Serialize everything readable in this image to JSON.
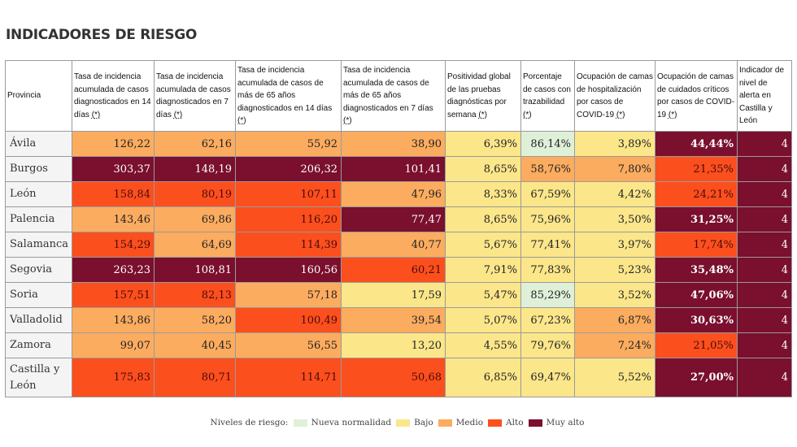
{
  "page": {
    "title": "INDICADORES DE RIESGO"
  },
  "colors": {
    "nueva": "#dff0d8",
    "bajo": "#fbe68a",
    "medio": "#fcac5f",
    "alto": "#fc4f1e",
    "muy_alto": "#7a0f2e"
  },
  "table": {
    "headers": [
      {
        "text": "Provincia",
        "ast": ""
      },
      {
        "text": "Tasa de incidencia acumulada de casos diagnosticados en 14 días ",
        "ast": "(*)"
      },
      {
        "text": "Tasa de incidencia acumulada de casos diagnosticados en 7 días ",
        "ast": "(*)"
      },
      {
        "text": "Tasa de incidencia acumulada de casos de más de 65 años diagnosticados en 14 días ",
        "ast": "(*)"
      },
      {
        "text": "Tasa de incidencia acumulada de casos de más de 65 años diagnosticados en 7 días ",
        "ast": "(*)"
      },
      {
        "text": "Positividad global de las pruebas diagnósticas por semana ",
        "ast": "(*)"
      },
      {
        "text": "Porcentaje de casos con trazabilidad ",
        "ast": "(*)"
      },
      {
        "text": "Ocupación de camas de hospitalización por casos de COVID-19 ",
        "ast": "(*)"
      },
      {
        "text": "Ocupación de camas de cuidados críticos por casos de COVID-19 ",
        "ast": "(*)"
      },
      {
        "text": "Indicador de nivel de alerta en Castilla y León",
        "ast": ""
      }
    ],
    "rows": [
      {
        "province": "Ávila",
        "cells": [
          {
            "v": "126,22",
            "l": "medio"
          },
          {
            "v": "62,16",
            "l": "medio"
          },
          {
            "v": "55,92",
            "l": "medio"
          },
          {
            "v": "38,90",
            "l": "medio"
          },
          {
            "v": "6,39%",
            "l": "bajo"
          },
          {
            "v": "86,14%",
            "l": "nueva"
          },
          {
            "v": "3,89%",
            "l": "bajo"
          },
          {
            "v": "44,44%",
            "l": "muy_alto",
            "b": true
          },
          {
            "v": "4",
            "l": "muy_alto"
          }
        ]
      },
      {
        "province": "Burgos",
        "cells": [
          {
            "v": "303,37",
            "l": "muy_alto"
          },
          {
            "v": "148,19",
            "l": "muy_alto"
          },
          {
            "v": "206,32",
            "l": "muy_alto"
          },
          {
            "v": "101,41",
            "l": "muy_alto"
          },
          {
            "v": "8,65%",
            "l": "bajo"
          },
          {
            "v": "58,76%",
            "l": "medio"
          },
          {
            "v": "7,80%",
            "l": "medio"
          },
          {
            "v": "21,35%",
            "l": "alto"
          },
          {
            "v": "4",
            "l": "muy_alto"
          }
        ]
      },
      {
        "province": "León",
        "cells": [
          {
            "v": "158,84",
            "l": "alto"
          },
          {
            "v": "80,19",
            "l": "alto"
          },
          {
            "v": "107,11",
            "l": "alto"
          },
          {
            "v": "47,96",
            "l": "medio"
          },
          {
            "v": "8,33%",
            "l": "bajo"
          },
          {
            "v": "67,59%",
            "l": "bajo"
          },
          {
            "v": "4,42%",
            "l": "bajo"
          },
          {
            "v": "24,21%",
            "l": "alto"
          },
          {
            "v": "4",
            "l": "muy_alto"
          }
        ]
      },
      {
        "province": "Palencia",
        "cells": [
          {
            "v": "143,46",
            "l": "medio"
          },
          {
            "v": "69,86",
            "l": "medio"
          },
          {
            "v": "116,20",
            "l": "alto"
          },
          {
            "v": "77,47",
            "l": "muy_alto"
          },
          {
            "v": "8,65%",
            "l": "bajo"
          },
          {
            "v": "75,96%",
            "l": "bajo"
          },
          {
            "v": "3,50%",
            "l": "bajo"
          },
          {
            "v": "31,25%",
            "l": "muy_alto",
            "b": true
          },
          {
            "v": "4",
            "l": "muy_alto"
          }
        ]
      },
      {
        "province": "Salamanca",
        "cells": [
          {
            "v": "154,29",
            "l": "alto"
          },
          {
            "v": "64,69",
            "l": "medio"
          },
          {
            "v": "114,39",
            "l": "alto"
          },
          {
            "v": "40,77",
            "l": "medio"
          },
          {
            "v": "5,67%",
            "l": "bajo"
          },
          {
            "v": "77,41%",
            "l": "bajo"
          },
          {
            "v": "3,97%",
            "l": "bajo"
          },
          {
            "v": "17,74%",
            "l": "alto"
          },
          {
            "v": "4",
            "l": "muy_alto"
          }
        ]
      },
      {
        "province": "Segovia",
        "cells": [
          {
            "v": "263,23",
            "l": "muy_alto"
          },
          {
            "v": "108,81",
            "l": "muy_alto"
          },
          {
            "v": "160,56",
            "l": "muy_alto"
          },
          {
            "v": "60,21",
            "l": "alto"
          },
          {
            "v": "7,91%",
            "l": "bajo"
          },
          {
            "v": "77,83%",
            "l": "bajo"
          },
          {
            "v": "5,23%",
            "l": "bajo"
          },
          {
            "v": "35,48%",
            "l": "muy_alto",
            "b": true
          },
          {
            "v": "4",
            "l": "muy_alto"
          }
        ]
      },
      {
        "province": "Soria",
        "cells": [
          {
            "v": "157,51",
            "l": "alto"
          },
          {
            "v": "82,13",
            "l": "alto"
          },
          {
            "v": "57,18",
            "l": "medio"
          },
          {
            "v": "17,59",
            "l": "bajo"
          },
          {
            "v": "5,47%",
            "l": "bajo"
          },
          {
            "v": "85,29%",
            "l": "nueva"
          },
          {
            "v": "3,52%",
            "l": "bajo"
          },
          {
            "v": "47,06%",
            "l": "muy_alto",
            "b": true
          },
          {
            "v": "4",
            "l": "muy_alto"
          }
        ]
      },
      {
        "province": "Valladolid",
        "cells": [
          {
            "v": "143,86",
            "l": "medio"
          },
          {
            "v": "58,20",
            "l": "medio"
          },
          {
            "v": "100,49",
            "l": "alto"
          },
          {
            "v": "39,54",
            "l": "medio"
          },
          {
            "v": "5,07%",
            "l": "bajo"
          },
          {
            "v": "67,23%",
            "l": "bajo"
          },
          {
            "v": "6,87%",
            "l": "medio"
          },
          {
            "v": "30,63%",
            "l": "muy_alto",
            "b": true
          },
          {
            "v": "4",
            "l": "muy_alto"
          }
        ]
      },
      {
        "province": "Zamora",
        "cells": [
          {
            "v": "99,07",
            "l": "medio"
          },
          {
            "v": "40,45",
            "l": "medio"
          },
          {
            "v": "56,55",
            "l": "medio"
          },
          {
            "v": "13,20",
            "l": "bajo"
          },
          {
            "v": "4,55%",
            "l": "bajo"
          },
          {
            "v": "79,76%",
            "l": "bajo"
          },
          {
            "v": "7,24%",
            "l": "medio"
          },
          {
            "v": "21,05%",
            "l": "alto"
          },
          {
            "v": "4",
            "l": "muy_alto"
          }
        ]
      },
      {
        "province": "Castilla y León",
        "tall": true,
        "cells": [
          {
            "v": "175,83",
            "l": "alto"
          },
          {
            "v": "80,71",
            "l": "alto"
          },
          {
            "v": "114,71",
            "l": "alto"
          },
          {
            "v": "50,68",
            "l": "alto"
          },
          {
            "v": "6,85%",
            "l": "bajo"
          },
          {
            "v": "69,47%",
            "l": "bajo"
          },
          {
            "v": "5,52%",
            "l": "bajo"
          },
          {
            "v": "27,00%",
            "l": "muy_alto",
            "b": true
          },
          {
            "v": "4",
            "l": "muy_alto"
          }
        ]
      }
    ]
  },
  "legend": {
    "label": "Niveles de riesgo:",
    "items": [
      {
        "key": "nueva",
        "label": "Nueva normalidad"
      },
      {
        "key": "bajo",
        "label": "Bajo"
      },
      {
        "key": "medio",
        "label": "Medio"
      },
      {
        "key": "alto",
        "label": "Alto"
      },
      {
        "key": "muy_alto",
        "label": "Muy alto"
      }
    ]
  }
}
